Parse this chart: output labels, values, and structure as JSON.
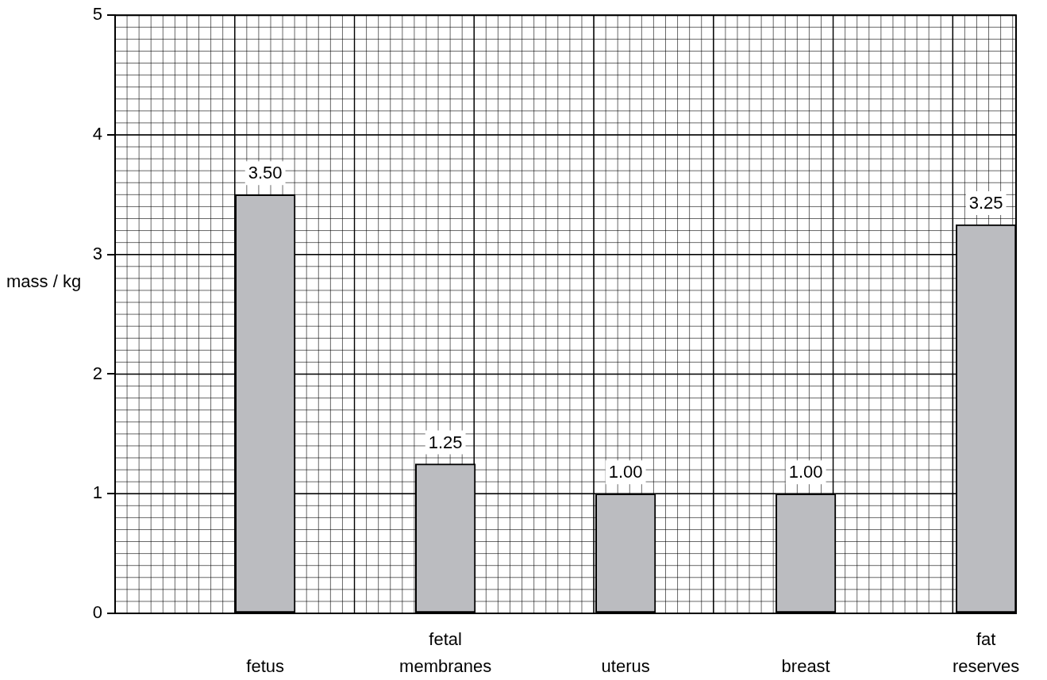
{
  "chart_data": {
    "type": "bar",
    "ylabel": "mass / kg",
    "categories": [
      "fetus",
      "fetal membranes",
      "uterus",
      "breast",
      "fat reserves"
    ],
    "values": [
      3.5,
      1.25,
      1.0,
      1.0,
      3.25
    ],
    "value_labels": [
      "3.50",
      "1.25",
      "1.00",
      "1.00",
      "3.25"
    ],
    "color": "#bbbcc0",
    "ylim": [
      0,
      5
    ],
    "yticks": [
      0,
      1,
      2,
      3,
      4,
      5
    ],
    "grid": true,
    "legend": false
  }
}
